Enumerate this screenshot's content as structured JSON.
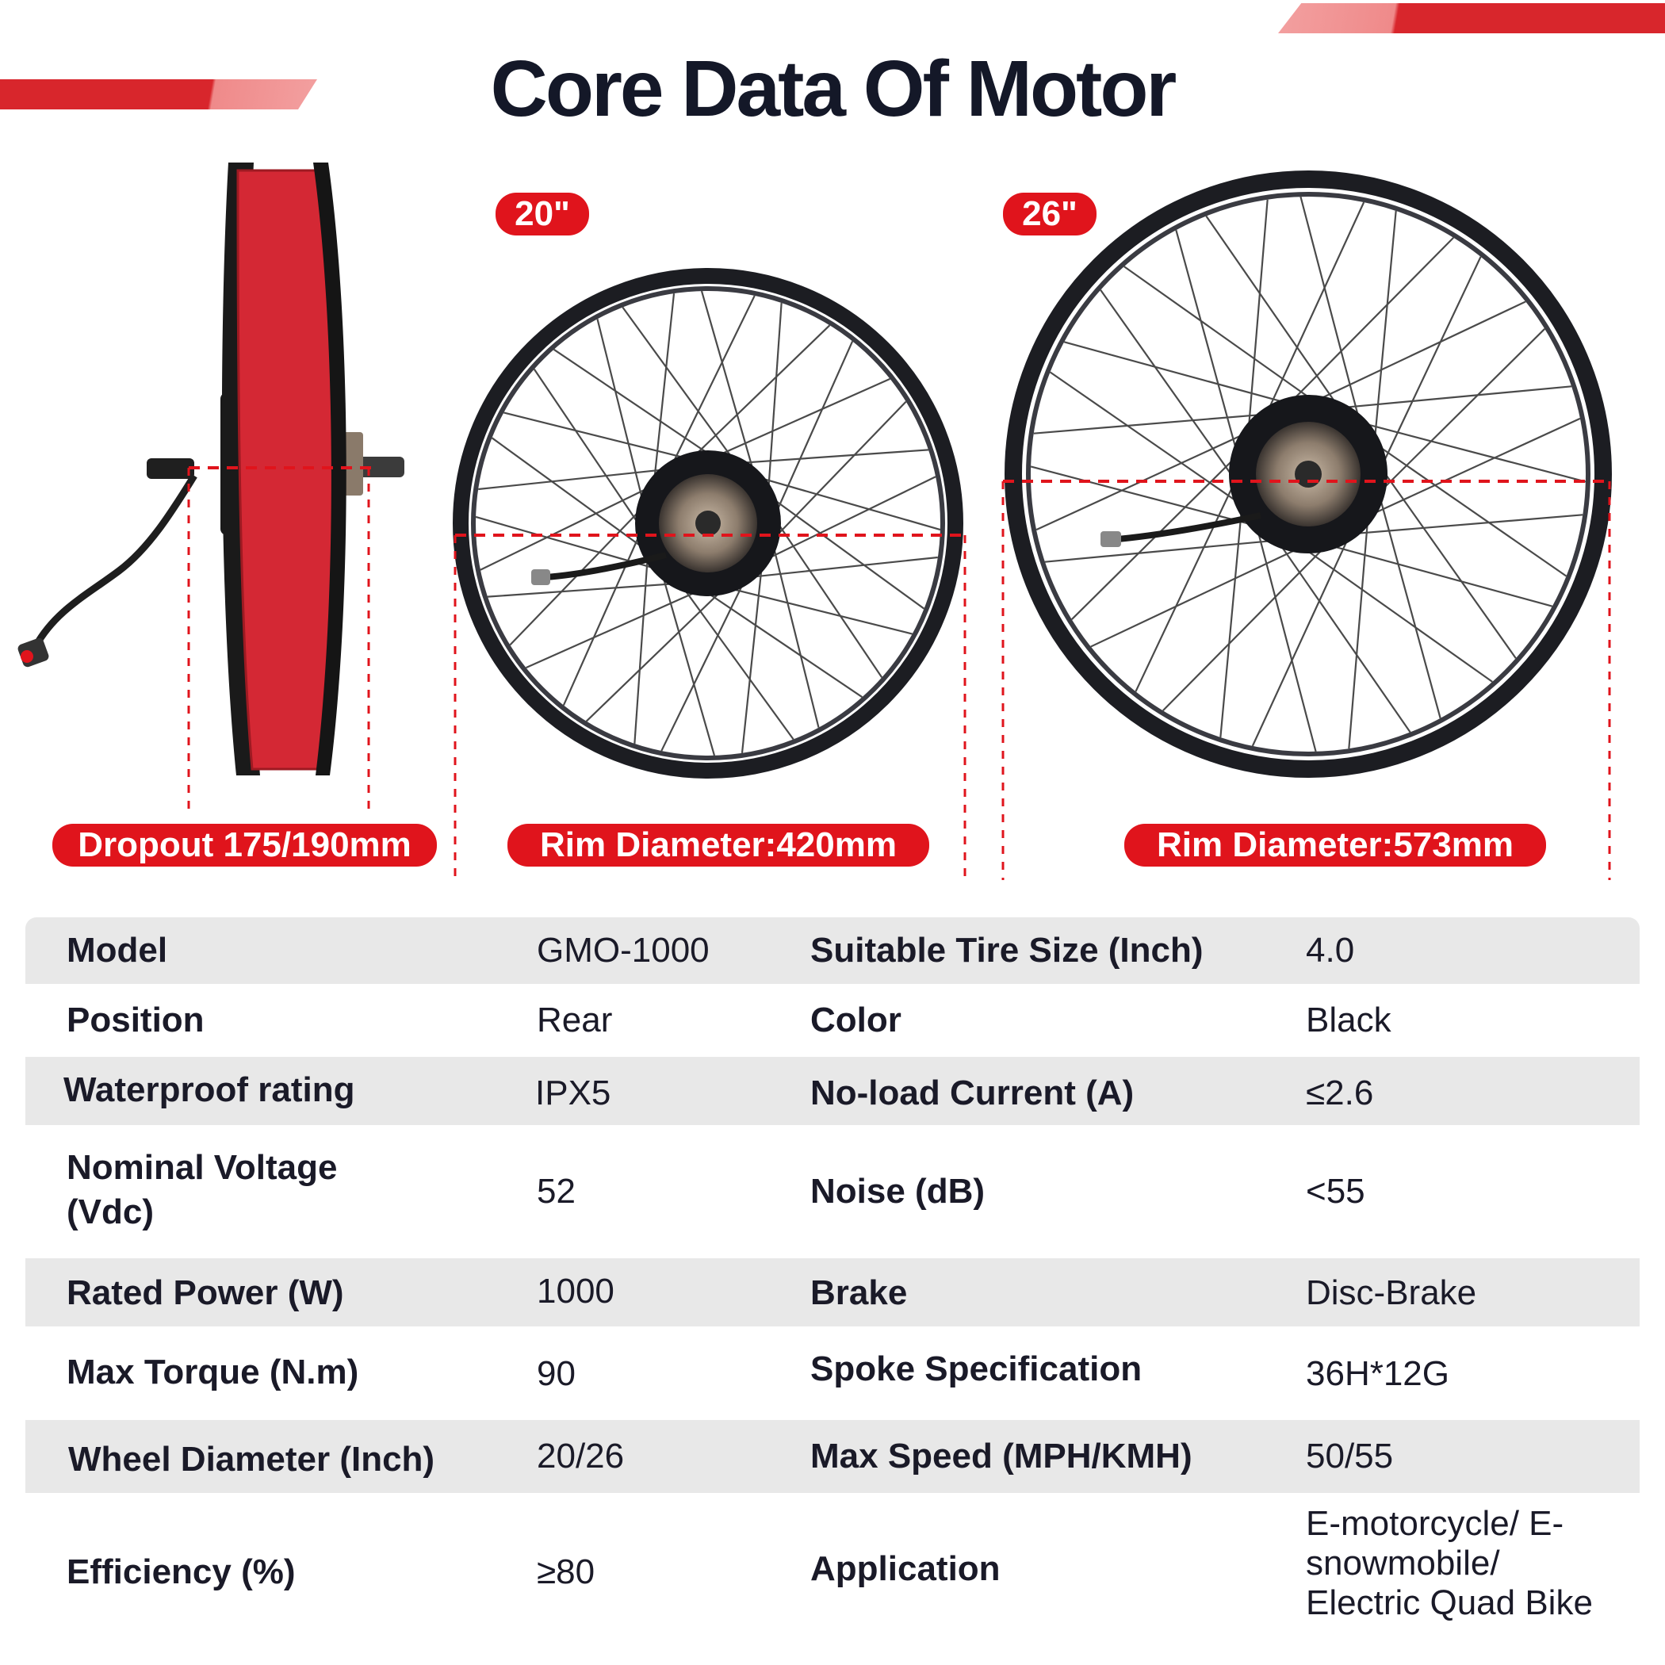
{
  "header": {
    "title": "Core Data Of Motor"
  },
  "figure": {
    "size_badges": [
      "20\"",
      "26\""
    ],
    "dimension_labels": [
      "Dropout 175/190mm",
      "Rim Diameter:420mm",
      "Rim Diameter:573mm"
    ]
  },
  "specs": {
    "rows": [
      {
        "label_left": "Model",
        "value_left": "GMO-1000",
        "label_right": "Suitable Tire Size (Inch)",
        "value_right": "4.0"
      },
      {
        "label_left": "Position",
        "value_left": "Rear",
        "label_right": "Color",
        "value_right": "Black"
      },
      {
        "label_left": "Waterproof rating",
        "value_left": "IPX5",
        "label_right": "No-load Current (A)",
        "value_right": "≤2.6"
      },
      {
        "label_left": "Nominal Voltage (Vdc)",
        "value_left": "52",
        "label_right": "Noise (dB)",
        "value_right": "<55"
      },
      {
        "label_left": "Rated Power (W)",
        "value_left": "1000",
        "label_right": "Brake",
        "value_right": "Disc-Brake"
      },
      {
        "label_left": "Max Torque (N.m)",
        "value_left": "90",
        "label_right": "Spoke Specification",
        "value_right": "36H*12G"
      },
      {
        "label_left": "Wheel Diameter (Inch)",
        "value_left": "20/26",
        "label_right": "Max Speed (MPH/KMH)",
        "value_right": "50/55"
      },
      {
        "label_left": "Efficiency (%)",
        "value_left": "≥80",
        "label_right": "Application",
        "value_right": "E-motorcycle/ E-snowmobile/ Electric Quad Bike"
      }
    ]
  },
  "colors": {
    "accent": "#e0141c",
    "row_shade": "#e8e8e8",
    "title": "#141828"
  }
}
